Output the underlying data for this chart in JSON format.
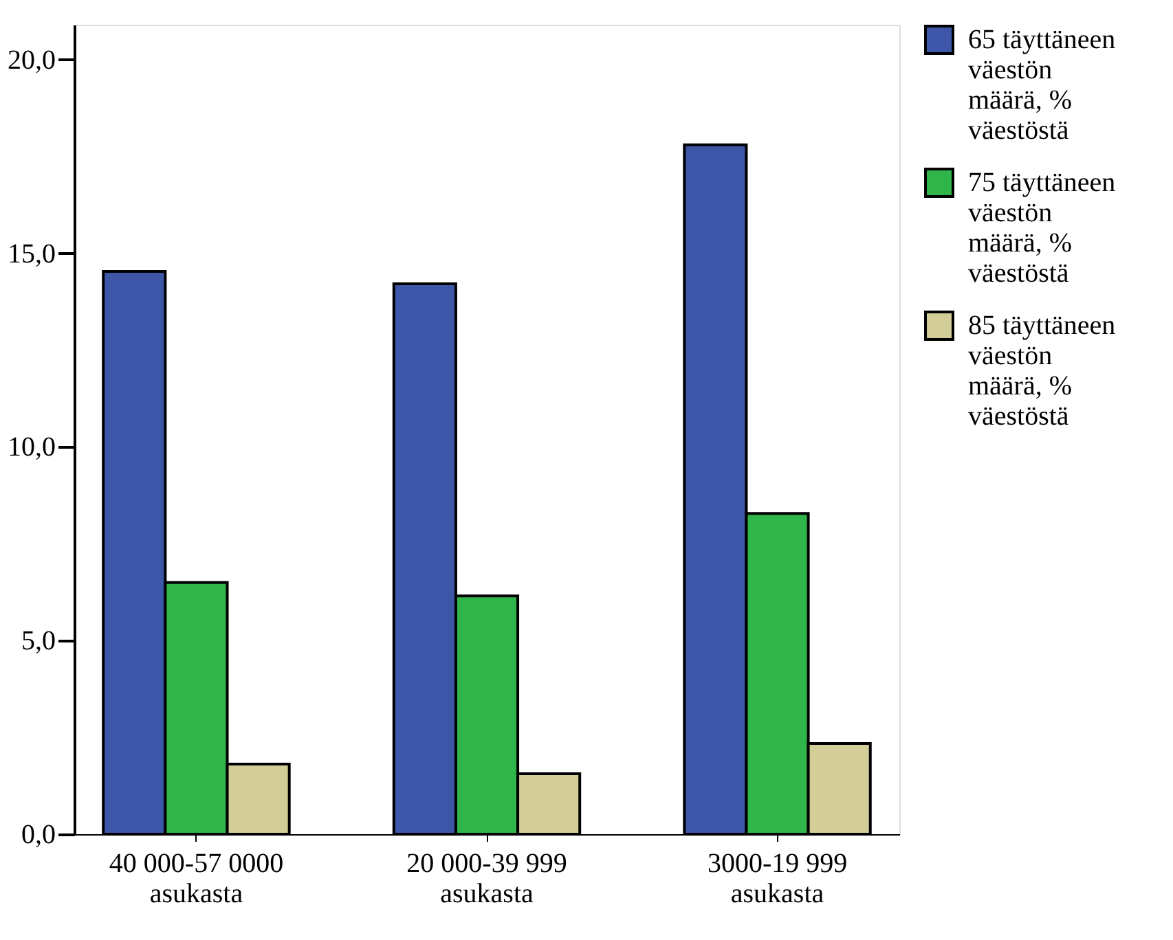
{
  "chart_data": {
    "type": "bar",
    "categories": [
      "40 000-57 0000 asukasta",
      "20 000-39 999 asukasta",
      "3000-19 999 asukasta"
    ],
    "series": [
      {
        "name": "65 täyttäneen väestön määrä, % väestöstä",
        "color": "#3d56a8",
        "values": [
          14.53,
          14.21,
          17.8
        ]
      },
      {
        "name": "75 täyttäneen väestön määrä, % väestöstä",
        "color": "#2fb54a",
        "values": [
          6.5,
          6.15,
          8.28
        ]
      },
      {
        "name": "85 täyttäneen väestön määrä, % väestöstä",
        "color": "#d3ce98",
        "values": [
          1.81,
          1.56,
          2.34
        ]
      }
    ],
    "ylim": [
      0,
      20.9
    ],
    "yticks": [
      {
        "value": 0,
        "label": "0,0"
      },
      {
        "value": 5,
        "label": "5,0"
      },
      {
        "value": 10,
        "label": "10,0"
      },
      {
        "value": 15,
        "label": "15,0"
      },
      {
        "value": 20,
        "label": "20,0"
      }
    ],
    "grid": false,
    "legend": "right"
  }
}
